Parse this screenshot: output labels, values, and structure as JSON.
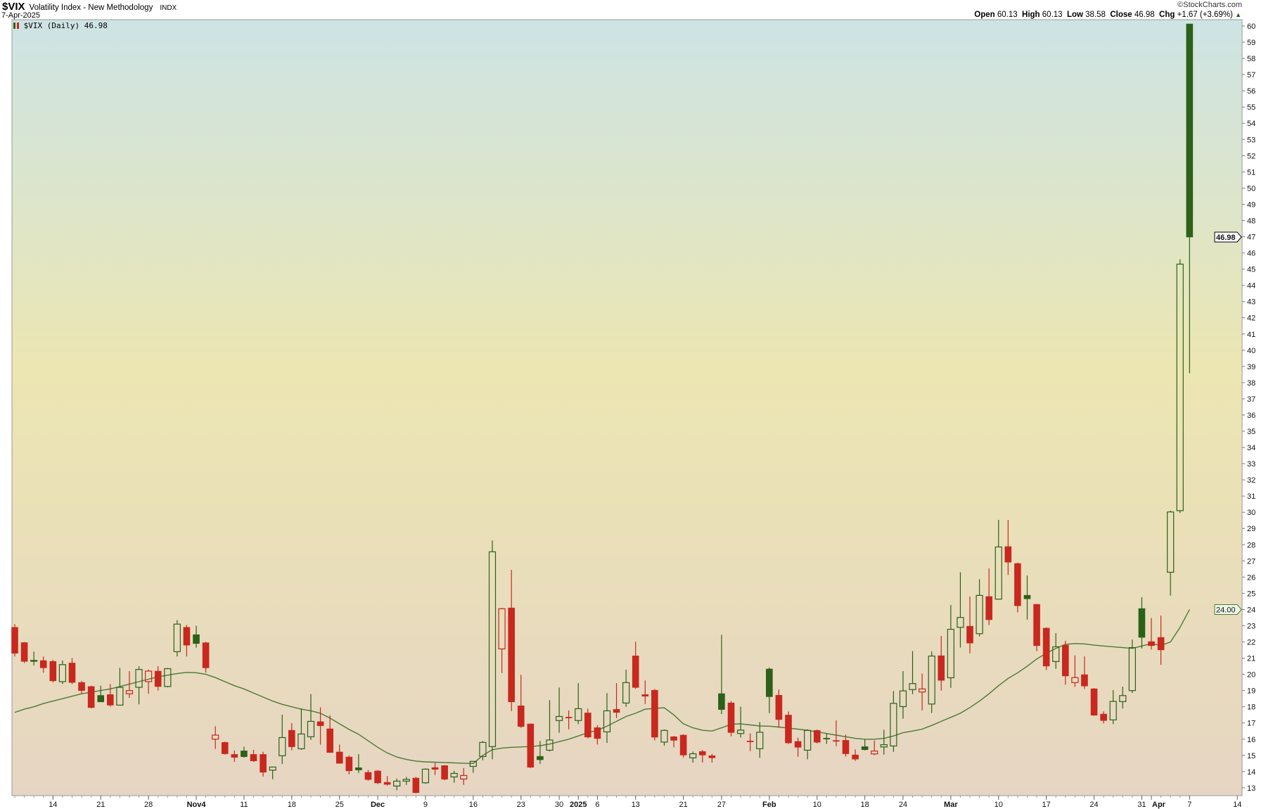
{
  "header": {
    "symbol": "$VIX",
    "name": "Volatility Index - New Methodology",
    "exchange": "INDX",
    "date": "7-Apr-2025",
    "copyright": "©StockCharts.com",
    "ohlc": {
      "open_label": "Open",
      "open": "60.13",
      "high_label": "High",
      "high": "60.13",
      "low_label": "Low",
      "low": "38.58",
      "close_label": "Close",
      "close": "46.98",
      "chg_label": "Chg",
      "chg": "+1.67 (+3.69%)",
      "chg_arrow": "▲"
    },
    "legend": "$VIX (Daily) 46.98"
  },
  "colors": {
    "up": "#2b6118",
    "down": "#c8281e",
    "ma": "#4a7a33",
    "bg_top": "#cde4e4",
    "bg_mid": "#ece6b2",
    "bg_bottom": "#e6d5c3"
  },
  "chart_data": {
    "type": "candlestick",
    "ylim": [
      12.5,
      60.3
    ],
    "yticks": [
      13,
      14,
      15,
      16,
      17,
      18,
      19,
      20,
      21,
      22,
      23,
      24,
      25,
      26,
      27,
      28,
      29,
      30,
      31,
      32,
      33,
      34,
      35,
      36,
      37,
      38,
      39,
      40,
      41,
      42,
      43,
      44,
      45,
      46,
      47,
      48,
      49,
      50,
      51,
      52,
      53,
      54,
      55,
      56,
      57,
      58,
      59,
      60
    ],
    "price_markers": [
      {
        "label": "46.98",
        "value": 46.98,
        "style": "close"
      },
      {
        "label": "24.00",
        "value": 24.0,
        "style": "ma"
      }
    ],
    "xticks": [
      {
        "label": "14",
        "date": "2024-10-14"
      },
      {
        "label": "21",
        "date": "2024-10-21"
      },
      {
        "label": "28",
        "date": "2024-10-28"
      },
      {
        "label": "Nov4",
        "date": "2024-11-04",
        "month": true
      },
      {
        "label": "11",
        "date": "2024-11-11"
      },
      {
        "label": "18",
        "date": "2024-11-18"
      },
      {
        "label": "25",
        "date": "2024-11-25"
      },
      {
        "label": "Dec",
        "date": "2024-12-02",
        "month": true
      },
      {
        "label": "9",
        "date": "2024-12-09"
      },
      {
        "label": "16",
        "date": "2024-12-16"
      },
      {
        "label": "23",
        "date": "2024-12-23"
      },
      {
        "label": "30",
        "date": "2024-12-30"
      },
      {
        "label": "2025",
        "date": "2025-01-02",
        "month": true
      },
      {
        "label": "6",
        "date": "2025-01-06"
      },
      {
        "label": "13",
        "date": "2025-01-13"
      },
      {
        "label": "21",
        "date": "2025-01-21"
      },
      {
        "label": "27",
        "date": "2025-01-27"
      },
      {
        "label": "Feb",
        "date": "2025-02-03",
        "month": true
      },
      {
        "label": "10",
        "date": "2025-02-10"
      },
      {
        "label": "18",
        "date": "2025-02-18"
      },
      {
        "label": "24",
        "date": "2025-02-24"
      },
      {
        "label": "Mar",
        "date": "2025-03-03",
        "month": true
      },
      {
        "label": "10",
        "date": "2025-03-10"
      },
      {
        "label": "17",
        "date": "2025-03-17"
      },
      {
        "label": "24",
        "date": "2025-03-24"
      },
      {
        "label": "31",
        "date": "2025-03-31"
      },
      {
        "label": "Apr",
        "date": "2025-04-01",
        "month": true
      },
      {
        "label": "7",
        "date": "2025-04-07"
      },
      {
        "label": "14",
        "date": "2025-04-14"
      }
    ],
    "columns": [
      "date",
      "open",
      "high",
      "low",
      "close",
      "color"
    ],
    "candles": [
      [
        "2024-10-08",
        22.9,
        23.1,
        21.1,
        21.3,
        "down"
      ],
      [
        "2024-10-09",
        21.96,
        22.0,
        20.7,
        20.8,
        "down"
      ],
      [
        "2024-10-10",
        20.85,
        21.4,
        20.55,
        20.86,
        "up"
      ],
      [
        "2024-10-11",
        20.85,
        21.1,
        20.1,
        20.4,
        "down"
      ],
      [
        "2024-10-14",
        20.8,
        20.9,
        19.5,
        19.6,
        "down"
      ],
      [
        "2024-10-15",
        19.55,
        20.85,
        19.4,
        20.6,
        "up"
      ],
      [
        "2024-10-16",
        20.7,
        21.0,
        19.4,
        19.5,
        "down"
      ],
      [
        "2024-10-17",
        19.5,
        19.6,
        18.8,
        19.0,
        "down"
      ],
      [
        "2024-10-18",
        19.25,
        19.3,
        17.9,
        17.95,
        "down"
      ],
      [
        "2024-10-21",
        18.7,
        19.3,
        18.3,
        18.3,
        "up"
      ],
      [
        "2024-10-22",
        18.75,
        19.4,
        18.0,
        18.1,
        "down"
      ],
      [
        "2024-10-23",
        18.1,
        20.4,
        18.1,
        19.2,
        "up"
      ],
      [
        "2024-10-24",
        18.8,
        20.2,
        18.55,
        19.0,
        "down"
      ],
      [
        "2024-10-25",
        19.2,
        20.5,
        18.15,
        20.3,
        "up"
      ],
      [
        "2024-10-28",
        19.55,
        20.3,
        18.8,
        20.2,
        "down"
      ],
      [
        "2024-10-29",
        20.2,
        20.5,
        19.0,
        19.25,
        "down"
      ],
      [
        "2024-10-30",
        19.25,
        20.4,
        19.2,
        20.35,
        "up"
      ],
      [
        "2024-10-31",
        21.4,
        23.35,
        21.1,
        23.1,
        "up"
      ],
      [
        "2024-11-01",
        22.9,
        23.05,
        21.1,
        21.8,
        "down"
      ],
      [
        "2024-11-04",
        22.45,
        23.0,
        21.65,
        21.9,
        "up"
      ],
      [
        "2024-11-05",
        21.95,
        22.0,
        20.1,
        20.4,
        "down"
      ],
      [
        "2024-11-06",
        16.0,
        16.8,
        15.4,
        16.25,
        "down"
      ],
      [
        "2024-11-07",
        15.8,
        15.85,
        15.05,
        15.1,
        "down"
      ],
      [
        "2024-11-08",
        15.06,
        15.3,
        14.6,
        14.88,
        "down"
      ],
      [
        "2024-11-11",
        15.28,
        15.53,
        14.85,
        14.92,
        "up"
      ],
      [
        "2024-11-12",
        15.06,
        15.34,
        14.6,
        14.66,
        "down"
      ],
      [
        "2024-11-13",
        15.06,
        15.22,
        13.69,
        13.96,
        "down"
      ],
      [
        "2024-11-14",
        14.09,
        14.3,
        13.53,
        14.28,
        "up"
      ],
      [
        "2024-11-15",
        14.98,
        17.51,
        14.47,
        16.1,
        "up"
      ],
      [
        "2024-11-18",
        16.55,
        16.99,
        15.31,
        15.53,
        "down"
      ],
      [
        "2024-11-19",
        15.41,
        17.9,
        15.34,
        16.32,
        "up"
      ],
      [
        "2024-11-20",
        16.15,
        18.78,
        15.96,
        17.1,
        "up"
      ],
      [
        "2024-11-21",
        17.08,
        17.96,
        15.66,
        16.83,
        "down"
      ],
      [
        "2024-11-22",
        16.64,
        17.48,
        15.15,
        15.18,
        "down"
      ],
      [
        "2024-11-25",
        15.21,
        15.67,
        14.5,
        14.51,
        "down"
      ],
      [
        "2024-11-26",
        14.9,
        14.99,
        13.83,
        14.05,
        "down"
      ],
      [
        "2024-11-27",
        14.24,
        15.08,
        13.92,
        14.1,
        "up"
      ],
      [
        "2024-11-29",
        13.95,
        14.1,
        13.44,
        13.51,
        "down"
      ],
      [
        "2024-12-02",
        14.04,
        14.1,
        13.23,
        13.3,
        "down"
      ],
      [
        "2024-12-03",
        13.34,
        13.72,
        13.14,
        13.21,
        "down"
      ],
      [
        "2024-12-04",
        13.11,
        13.57,
        12.85,
        13.41,
        "up"
      ],
      [
        "2024-12-05",
        13.41,
        13.67,
        13.18,
        13.52,
        "up"
      ],
      [
        "2024-12-06",
        13.6,
        13.67,
        12.66,
        12.7,
        "down"
      ],
      [
        "2024-12-09",
        13.31,
        14.2,
        13.25,
        14.15,
        "up"
      ],
      [
        "2024-12-10",
        14.25,
        14.54,
        13.79,
        14.14,
        "down"
      ],
      [
        "2024-12-11",
        14.37,
        14.4,
        13.46,
        13.53,
        "down"
      ],
      [
        "2024-12-12",
        13.67,
        14.05,
        13.31,
        13.89,
        "up"
      ],
      [
        "2024-12-13",
        13.54,
        14.22,
        13.18,
        13.76,
        "down"
      ],
      [
        "2024-12-16",
        14.32,
        14.63,
        13.93,
        14.63,
        "up"
      ],
      [
        "2024-12-17",
        14.93,
        15.89,
        14.7,
        15.8,
        "up"
      ],
      [
        "2024-12-18",
        15.54,
        28.26,
        14.76,
        27.56,
        "up"
      ],
      [
        "2024-12-19",
        21.57,
        24.1,
        20.08,
        24.05,
        "down"
      ],
      [
        "2024-12-20",
        24.1,
        26.45,
        17.74,
        18.3,
        "down"
      ],
      [
        "2024-12-23",
        18.06,
        19.97,
        16.7,
        16.78,
        "down"
      ],
      [
        "2024-12-24",
        16.94,
        16.97,
        14.22,
        14.27,
        "down"
      ],
      [
        "2024-12-26",
        14.94,
        15.89,
        14.48,
        14.73,
        "up"
      ],
      [
        "2024-12-27",
        15.32,
        18.41,
        15.24,
        15.95,
        "up"
      ],
      [
        "2024-12-30",
        17.15,
        19.19,
        16.4,
        17.4,
        "up"
      ],
      [
        "2024-12-31",
        17.36,
        17.77,
        16.61,
        17.35,
        "down"
      ],
      [
        "2025-01-02",
        17.15,
        19.46,
        16.93,
        17.88,
        "up"
      ],
      [
        "2025-01-03",
        17.62,
        17.88,
        16.05,
        16.13,
        "down"
      ],
      [
        "2025-01-06",
        16.71,
        16.86,
        15.67,
        16.04,
        "down"
      ],
      [
        "2025-01-07",
        16.45,
        18.84,
        15.77,
        17.75,
        "up"
      ],
      [
        "2025-01-08",
        17.84,
        19.46,
        17.3,
        17.65,
        "down"
      ],
      [
        "2025-01-10",
        18.23,
        20.29,
        18.0,
        19.49,
        "up"
      ],
      [
        "2025-01-13",
        21.14,
        22.01,
        19.11,
        19.19,
        "down"
      ],
      [
        "2025-01-14",
        18.75,
        19.62,
        18.17,
        18.65,
        "down"
      ],
      [
        "2025-01-15",
        19.02,
        19.1,
        15.92,
        16.12,
        "down"
      ],
      [
        "2025-01-16",
        15.82,
        16.6,
        15.6,
        16.54,
        "up"
      ],
      [
        "2025-01-17",
        16.15,
        16.2,
        15.5,
        15.93,
        "down"
      ],
      [
        "2025-01-21",
        16.25,
        16.3,
        14.87,
        15.02,
        "down"
      ],
      [
        "2025-01-22",
        14.85,
        15.24,
        14.56,
        15.1,
        "up"
      ],
      [
        "2025-01-23",
        15.24,
        15.34,
        14.56,
        15.02,
        "down"
      ],
      [
        "2025-01-24",
        14.98,
        15.1,
        14.56,
        14.85,
        "down"
      ],
      [
        "2025-01-27",
        18.81,
        22.44,
        17.55,
        17.83,
        "up"
      ],
      [
        "2025-01-28",
        18.24,
        18.35,
        16.18,
        16.41,
        "down"
      ],
      [
        "2025-01-29",
        16.35,
        18.0,
        16.1,
        16.56,
        "up"
      ],
      [
        "2025-01-30",
        15.89,
        16.36,
        15.26,
        15.84,
        "down"
      ],
      [
        "2025-01-31",
        15.41,
        17.06,
        14.85,
        16.43,
        "up"
      ],
      [
        "2025-02-03",
        20.33,
        20.42,
        17.61,
        18.62,
        "up"
      ],
      [
        "2025-02-04",
        18.71,
        19.07,
        16.71,
        17.21,
        "down"
      ],
      [
        "2025-02-05",
        17.49,
        17.71,
        15.7,
        15.77,
        "down"
      ],
      [
        "2025-02-06",
        15.86,
        16.1,
        14.92,
        15.5,
        "down"
      ],
      [
        "2025-02-07",
        15.32,
        16.61,
        14.76,
        16.54,
        "up"
      ],
      [
        "2025-02-10",
        16.54,
        16.6,
        15.74,
        15.81,
        "down"
      ],
      [
        "2025-02-11",
        16.06,
        16.35,
        15.71,
        16.02,
        "up"
      ],
      [
        "2025-02-12",
        15.92,
        17.16,
        15.57,
        15.89,
        "down"
      ],
      [
        "2025-02-13",
        15.93,
        16.28,
        14.93,
        15.1,
        "down"
      ],
      [
        "2025-02-14",
        15.03,
        15.37,
        14.66,
        14.77,
        "down"
      ],
      [
        "2025-02-18",
        15.54,
        15.97,
        15.31,
        15.35,
        "up"
      ],
      [
        "2025-02-19",
        15.09,
        15.92,
        15.02,
        15.27,
        "down"
      ],
      [
        "2025-02-20",
        15.52,
        16.58,
        15.05,
        15.66,
        "up"
      ],
      [
        "2025-02-21",
        15.58,
        18.97,
        15.22,
        18.21,
        "up"
      ],
      [
        "2025-02-24",
        18.01,
        20.2,
        17.26,
        18.98,
        "up"
      ],
      [
        "2025-02-25",
        19.06,
        21.44,
        18.78,
        19.43,
        "up"
      ],
      [
        "2025-02-26",
        18.91,
        20.04,
        17.77,
        19.1,
        "down"
      ],
      [
        "2025-02-27",
        18.17,
        21.41,
        17.62,
        21.13,
        "up"
      ],
      [
        "2025-02-28",
        21.15,
        22.37,
        19.0,
        19.63,
        "down"
      ],
      [
        "2025-03-03",
        19.79,
        24.28,
        19.17,
        22.78,
        "up"
      ],
      [
        "2025-03-04",
        22.9,
        26.3,
        21.65,
        23.51,
        "up"
      ],
      [
        "2025-03-05",
        22.97,
        24.8,
        21.3,
        21.93,
        "down"
      ],
      [
        "2025-03-06",
        22.51,
        25.87,
        22.34,
        24.87,
        "up"
      ],
      [
        "2025-03-07",
        24.8,
        26.54,
        23.04,
        23.37,
        "down"
      ],
      [
        "2025-03-10",
        24.64,
        29.53,
        24.61,
        27.86,
        "up"
      ],
      [
        "2025-03-11",
        27.88,
        29.53,
        26.13,
        26.92,
        "down"
      ],
      [
        "2025-03-12",
        26.84,
        26.9,
        23.82,
        24.23,
        "down"
      ],
      [
        "2025-03-13",
        24.88,
        26.1,
        23.38,
        24.66,
        "up"
      ],
      [
        "2025-03-14",
        24.32,
        24.35,
        21.43,
        21.77,
        "down"
      ],
      [
        "2025-03-17",
        22.85,
        22.9,
        20.27,
        20.51,
        "down"
      ],
      [
        "2025-03-18",
        20.79,
        22.54,
        20.34,
        21.7,
        "up"
      ],
      [
        "2025-03-19",
        21.8,
        22.07,
        19.36,
        19.9,
        "down"
      ],
      [
        "2025-03-20",
        19.49,
        21.17,
        19.22,
        19.8,
        "down"
      ],
      [
        "2025-03-21",
        19.98,
        21.11,
        19.1,
        19.28,
        "down"
      ],
      [
        "2025-03-24",
        19.11,
        19.15,
        17.44,
        17.48,
        "down"
      ],
      [
        "2025-03-25",
        17.55,
        17.72,
        16.97,
        17.15,
        "down"
      ],
      [
        "2025-03-26",
        17.19,
        19.03,
        16.93,
        18.33,
        "up"
      ],
      [
        "2025-03-27",
        18.32,
        19.24,
        17.89,
        18.69,
        "up"
      ],
      [
        "2025-03-28",
        19.0,
        22.15,
        18.85,
        21.65,
        "up"
      ],
      [
        "2025-03-31",
        24.06,
        24.76,
        21.6,
        22.28,
        "up"
      ],
      [
        "2025-04-01",
        22.02,
        23.48,
        21.53,
        21.77,
        "down"
      ],
      [
        "2025-04-02",
        22.28,
        23.63,
        20.59,
        21.51,
        "down"
      ],
      [
        "2025-04-03",
        26.3,
        30.1,
        24.86,
        30.02,
        "up"
      ],
      [
        "2025-04-04",
        30.1,
        45.6,
        29.95,
        45.31,
        "up"
      ],
      [
        "2025-04-07",
        60.13,
        60.13,
        38.58,
        46.98,
        "up"
      ]
    ],
    "moving_average": [
      17.65,
      17.85,
      18.0,
      18.2,
      18.35,
      18.5,
      18.65,
      18.8,
      18.9,
      19.0,
      19.1,
      19.25,
      19.4,
      19.55,
      19.7,
      19.85,
      19.95,
      20.05,
      20.12,
      20.1,
      20.0,
      19.8,
      19.55,
      19.3,
      19.1,
      18.85,
      18.6,
      18.35,
      18.15,
      18.0,
      17.85,
      17.75,
      17.6,
      17.3,
      16.95,
      16.6,
      16.3,
      15.9,
      15.5,
      15.15,
      14.9,
      14.75,
      14.65,
      14.6,
      14.58,
      14.56,
      14.54,
      14.52,
      14.5,
      15.0,
      15.35,
      15.45,
      15.5,
      15.52,
      15.55,
      15.6,
      15.7,
      15.85,
      16.0,
      16.2,
      16.4,
      16.55,
      16.8,
      17.1,
      17.4,
      17.6,
      17.85,
      17.9,
      17.94,
      17.5,
      16.95,
      16.7,
      16.55,
      16.5,
      16.7,
      16.92,
      16.95,
      16.88,
      16.82,
      16.8,
      16.75,
      16.68,
      16.62,
      16.55,
      16.45,
      16.35,
      16.25,
      16.15,
      16.05,
      16.0,
      16.0,
      16.05,
      16.2,
      16.4,
      16.5,
      16.62,
      16.85,
      17.1,
      17.35,
      17.6,
      17.95,
      18.35,
      18.8,
      19.3,
      19.75,
      20.1,
      20.5,
      20.95,
      21.3,
      21.6,
      21.85,
      21.9,
      21.88,
      21.8,
      21.75,
      21.7,
      21.65,
      21.6,
      21.75,
      21.9,
      21.78,
      22.0,
      22.9,
      24.0
    ]
  }
}
